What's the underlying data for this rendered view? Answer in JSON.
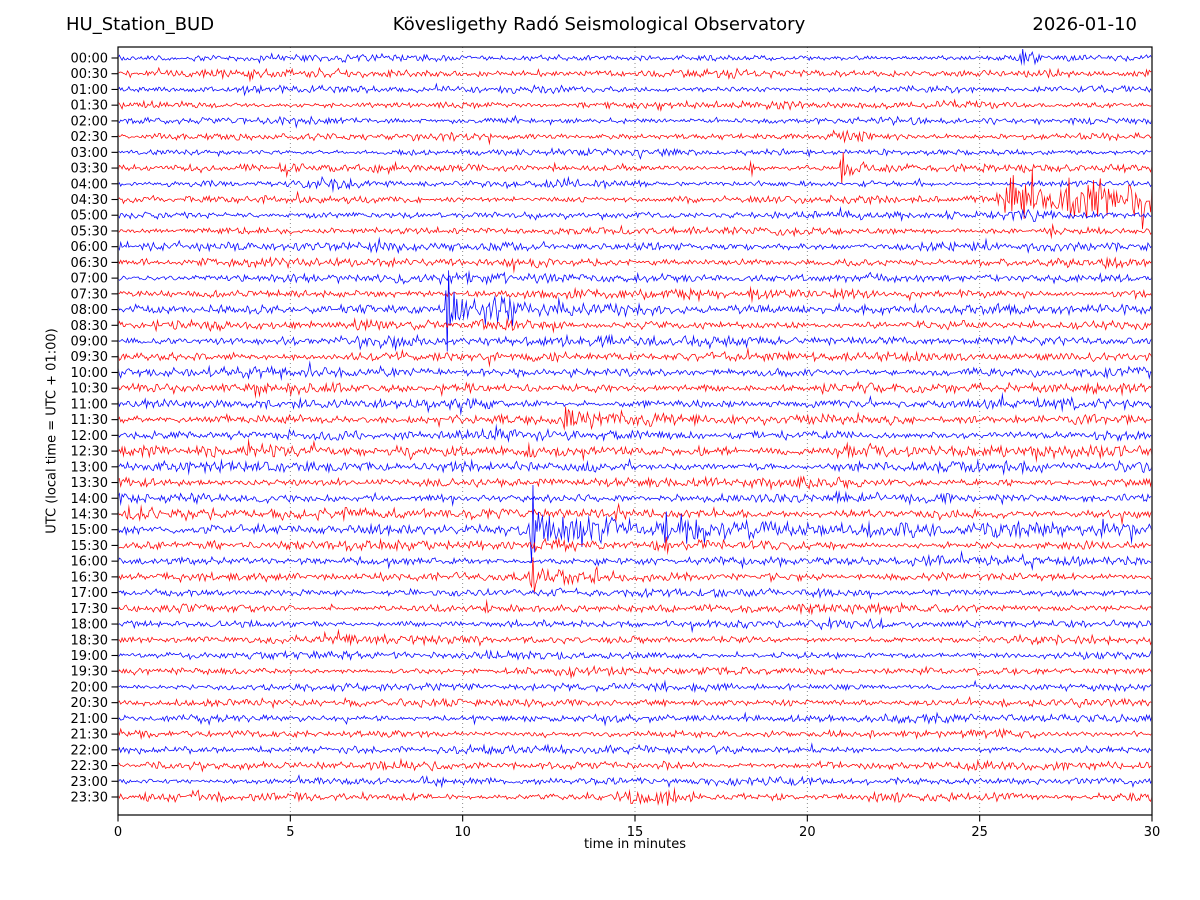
{
  "header": {
    "station": "HU_Station_BUD",
    "observatory": "Kövesligethy Radó Seismological Observatory",
    "date": "2026-01-10"
  },
  "chart_data": {
    "type": "seismogram_helicorder_dayplot",
    "station": "HU_Station_BUD",
    "title": "Kövesligethy Radó Seismological Observatory",
    "date": "2026-01-10",
    "xlabel": "time in minutes",
    "ylabel": "UTC (local time = UTC + 01:00)",
    "x_range": [
      0,
      30
    ],
    "x_ticks": [
      0,
      5,
      10,
      15,
      20,
      25,
      30
    ],
    "minutes_per_line": 30,
    "grid_vertical_dotted_at": [
      5,
      10,
      15,
      20,
      25
    ],
    "trace_colors": {
      "blue": "#0000ff",
      "red": "#ff0000"
    },
    "axis_color": "#000000",
    "row_format": "events: [start_min, amplitude_px, attack_min, decay_min]; spikes: [minute, half_height_px]",
    "rows": [
      {
        "label": "00:00",
        "color": "blue",
        "base": 2.1,
        "events": [
          [
            26.25,
            5.5,
            0.15,
            0.5
          ]
        ],
        "spikes": [
          [
            26.25,
            9
          ]
        ]
      },
      {
        "label": "00:30",
        "color": "red",
        "base": 2.3,
        "events": [
          [
            3.75,
            3.5,
            0.2,
            0.5
          ],
          [
            17.0,
            1.2,
            3.0,
            8.0
          ]
        ],
        "spikes": []
      },
      {
        "label": "01:00",
        "color": "blue",
        "base": 2.2,
        "events": [],
        "spikes": []
      },
      {
        "label": "01:30",
        "color": "red",
        "base": 2.2,
        "events": [
          [
            18.9,
            2.0,
            0.3,
            0.6
          ],
          [
            23.8,
            2.2,
            0.3,
            0.8
          ]
        ],
        "spikes": []
      },
      {
        "label": "02:00",
        "color": "blue",
        "base": 2.1,
        "events": [],
        "spikes": []
      },
      {
        "label": "02:30",
        "color": "red",
        "base": 2.3,
        "events": [
          [
            20.9,
            4.0,
            0.4,
            1.0
          ]
        ],
        "spikes": []
      },
      {
        "label": "03:00",
        "color": "blue",
        "base": 2.1,
        "events": [],
        "spikes": []
      },
      {
        "label": "03:30",
        "color": "red",
        "base": 2.4,
        "events": [
          [
            4.9,
            3.5,
            0.3,
            0.5
          ],
          [
            7.5,
            4.0,
            0.2,
            0.6
          ],
          [
            21.05,
            5.0,
            0.1,
            0.7
          ]
        ],
        "spikes": [
          [
            21.02,
            20
          ],
          [
            18.38,
            8
          ]
        ]
      },
      {
        "label": "04:00",
        "color": "blue",
        "base": 2.2,
        "events": [
          [
            6.2,
            2.0,
            0.4,
            0.8
          ],
          [
            13.0,
            1.5,
            0.5,
            1.0
          ]
        ],
        "spikes": []
      },
      {
        "label": "04:30",
        "color": "red",
        "base": 2.4,
        "events": [
          [
            25.9,
            14.0,
            0.5,
            2.2
          ],
          [
            27.9,
            12.0,
            0.4,
            2.5
          ]
        ],
        "spikes": [
          [
            26.3,
            22
          ],
          [
            27.6,
            24
          ],
          [
            28.3,
            20
          ]
        ]
      },
      {
        "label": "05:00",
        "color": "blue",
        "base": 2.3,
        "events": [
          [
            26.5,
            2.0,
            1.0,
            2.0
          ]
        ],
        "spikes": []
      },
      {
        "label": "05:30",
        "color": "red",
        "base": 2.4,
        "events": [
          [
            27.1,
            3.0,
            0.3,
            0.8
          ]
        ],
        "spikes": []
      },
      {
        "label": "06:00",
        "color": "blue",
        "base": 3.0,
        "events": [],
        "spikes": []
      },
      {
        "label": "06:30",
        "color": "red",
        "base": 2.8,
        "events": [],
        "spikes": []
      },
      {
        "label": "07:00",
        "color": "blue",
        "base": 3.0,
        "events": [],
        "spikes": []
      },
      {
        "label": "07:30",
        "color": "red",
        "base": 2.9,
        "events": [
          [
            18.4,
            3.0,
            0.15,
            0.4
          ]
        ],
        "spikes": [
          [
            18.38,
            8
          ]
        ]
      },
      {
        "label": "08:00",
        "color": "blue",
        "base": 3.0,
        "events": [
          [
            9.6,
            11.0,
            0.12,
            0.9
          ],
          [
            10.6,
            6.0,
            0.3,
            1.8
          ],
          [
            13.5,
            2.0,
            1.0,
            4.0
          ]
        ],
        "spikes": [
          [
            9.57,
            52
          ],
          [
            9.75,
            18
          ],
          [
            10.0,
            12
          ]
        ]
      },
      {
        "label": "08:30",
        "color": "red",
        "base": 2.9,
        "events": [
          [
            10.8,
            2.0,
            1.0,
            2.0
          ]
        ],
        "spikes": []
      },
      {
        "label": "09:00",
        "color": "blue",
        "base": 3.0,
        "events": [
          [
            7.0,
            3.0,
            0.8,
            1.2
          ],
          [
            7.9,
            2.5,
            0.4,
            1.0
          ]
        ],
        "spikes": []
      },
      {
        "label": "09:30",
        "color": "red",
        "base": 2.9,
        "events": [
          [
            7.5,
            1.8,
            1.0,
            2.0
          ]
        ],
        "spikes": []
      },
      {
        "label": "10:00",
        "color": "blue",
        "base": 3.0,
        "events": [],
        "spikes": []
      },
      {
        "label": "10:30",
        "color": "red",
        "base": 3.0,
        "events": [
          [
            9.9,
            2.5,
            0.4,
            0.8
          ]
        ],
        "spikes": []
      },
      {
        "label": "11:00",
        "color": "blue",
        "base": 3.0,
        "events": [],
        "spikes": []
      },
      {
        "label": "11:30",
        "color": "red",
        "base": 2.9,
        "events": [
          [
            13.0,
            8.0,
            0.15,
            0.7
          ],
          [
            14.0,
            2.0,
            0.5,
            3.0
          ],
          [
            27.9,
            2.0,
            0.3,
            0.8
          ]
        ],
        "spikes": [
          [
            12.98,
            14
          ]
        ]
      },
      {
        "label": "12:00",
        "color": "blue",
        "base": 3.0,
        "events": [],
        "spikes": []
      },
      {
        "label": "12:30",
        "color": "red",
        "base": 3.3,
        "events": [
          [
            8.3,
            3.5,
            0.5,
            0.8
          ],
          [
            11.9,
            4.0,
            0.3,
            0.9
          ],
          [
            21.3,
            3.5,
            0.8,
            1.2
          ]
        ],
        "spikes": []
      },
      {
        "label": "13:00",
        "color": "blue",
        "base": 3.3,
        "events": [],
        "spikes": []
      },
      {
        "label": "13:30",
        "color": "red",
        "base": 2.9,
        "events": [],
        "spikes": []
      },
      {
        "label": "14:00",
        "color": "blue",
        "base": 3.0,
        "events": [],
        "spikes": []
      },
      {
        "label": "14:30",
        "color": "red",
        "base": 3.2,
        "events": [
          [
            0.5,
            2.5,
            0.5,
            4.0
          ]
        ],
        "spikes": []
      },
      {
        "label": "15:00",
        "color": "blue",
        "base": 3.1,
        "events": [
          [
            12.05,
            11.0,
            0.15,
            1.2
          ],
          [
            13.5,
            5.0,
            0.8,
            2.5
          ],
          [
            15.8,
            6.0,
            0.3,
            1.2
          ],
          [
            16.5,
            5.0,
            0.3,
            2.0
          ],
          [
            20.0,
            2.5,
            2.0,
            12.0
          ]
        ],
        "spikes": [
          [
            12.03,
            50
          ],
          [
            12.5,
            16
          ],
          [
            12.9,
            14
          ],
          [
            15.9,
            20
          ],
          [
            16.5,
            14
          ]
        ]
      },
      {
        "label": "15:30",
        "color": "red",
        "base": 3.0,
        "events": [
          [
            12.2,
            2.0,
            0.5,
            2.0
          ]
        ],
        "spikes": [
          [
            15.92,
            10
          ]
        ]
      },
      {
        "label": "16:00",
        "color": "blue",
        "base": 2.9,
        "events": [],
        "spikes": []
      },
      {
        "label": "16:30",
        "color": "red",
        "base": 3.0,
        "events": [
          [
            12.1,
            3.0,
            0.2,
            1.0
          ]
        ],
        "spikes": [
          [
            12.05,
            22
          ]
        ]
      },
      {
        "label": "17:00",
        "color": "blue",
        "base": 2.6,
        "events": [],
        "spikes": []
      },
      {
        "label": "17:30",
        "color": "red",
        "base": 2.7,
        "events": [],
        "spikes": [
          [
            10.7,
            7
          ]
        ]
      },
      {
        "label": "18:00",
        "color": "blue",
        "base": 2.6,
        "events": [],
        "spikes": []
      },
      {
        "label": "18:30",
        "color": "red",
        "base": 2.6,
        "events": [],
        "spikes": []
      },
      {
        "label": "19:00",
        "color": "blue",
        "base": 2.4,
        "events": [],
        "spikes": []
      },
      {
        "label": "19:30",
        "color": "red",
        "base": 2.4,
        "events": [],
        "spikes": []
      },
      {
        "label": "20:00",
        "color": "blue",
        "base": 2.5,
        "events": [],
        "spikes": []
      },
      {
        "label": "20:30",
        "color": "red",
        "base": 2.6,
        "events": [],
        "spikes": []
      },
      {
        "label": "21:00",
        "color": "blue",
        "base": 2.6,
        "events": [],
        "spikes": []
      },
      {
        "label": "21:30",
        "color": "red",
        "base": 2.4,
        "events": [],
        "spikes": []
      },
      {
        "label": "22:00",
        "color": "blue",
        "base": 2.5,
        "events": [],
        "spikes": []
      },
      {
        "label": "22:30",
        "color": "red",
        "base": 2.6,
        "events": [
          [
            15.95,
            3.0,
            0.3,
            0.5
          ]
        ],
        "spikes": []
      },
      {
        "label": "23:00",
        "color": "blue",
        "base": 2.4,
        "events": [
          [
            8.9,
            1.5,
            0.4,
            0.8
          ]
        ],
        "spikes": []
      },
      {
        "label": "23:30",
        "color": "red",
        "base": 2.6,
        "events": [
          [
            2.3,
            2.0,
            0.4,
            0.8
          ],
          [
            15.2,
            4.0,
            0.8,
            0.9
          ]
        ],
        "spikes": [
          [
            15.95,
            9
          ],
          [
            16.15,
            8
          ]
        ]
      }
    ]
  }
}
